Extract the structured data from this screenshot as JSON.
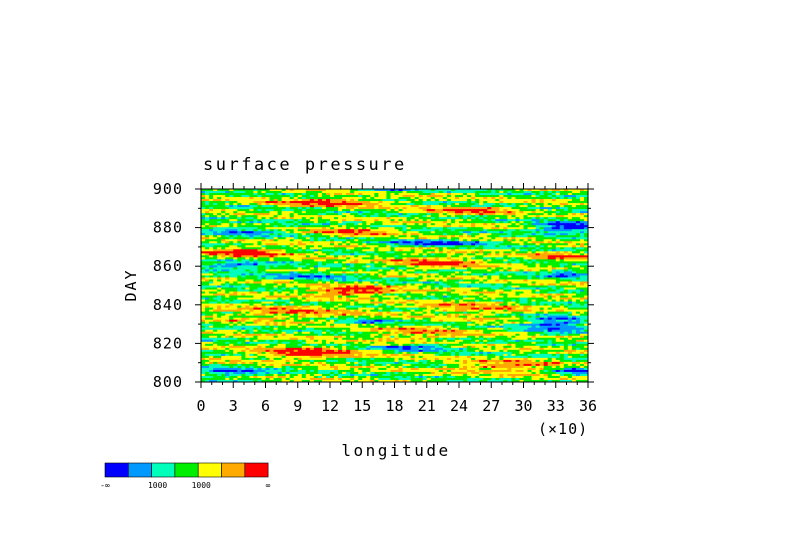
{
  "chart_data": {
    "type": "heatmap",
    "title": "surface pressure",
    "xlabel": "longitude",
    "ylabel": "DAY",
    "x_multiplier_label": "(×10)",
    "xlim": [
      0,
      36
    ],
    "ylim": [
      800,
      900
    ],
    "x_ticks": [
      "0",
      "3",
      "6",
      "9",
      "12",
      "15",
      "18",
      "21",
      "24",
      "27",
      "30",
      "33",
      "36"
    ],
    "y_ticks": [
      "800",
      "820",
      "840",
      "860",
      "880",
      "900"
    ],
    "colorbar": {
      "colors": [
        "#0000ff",
        "#0099ff",
        "#00ffbb",
        "#00ee00",
        "#ffff00",
        "#ffaa00",
        "#ff0000"
      ],
      "labels": [
        "-∞",
        "1000",
        "1000",
        "∞"
      ]
    },
    "field_notes": "Horizontal banded contour field; blue/cyan minima along ~805, ~855-862, ~870-882 (x 30-36), ~815-835 (x 30-36); red maxima near ~810-818, ~845-850, ~865-870, ~885-893."
  }
}
